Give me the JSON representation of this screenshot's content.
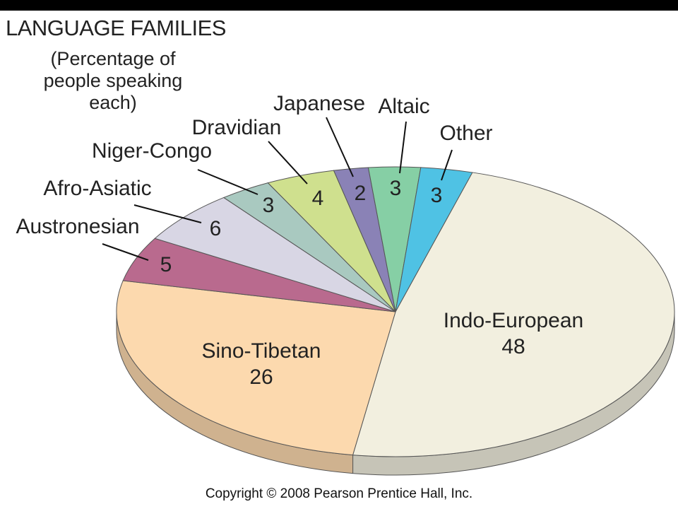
{
  "chart_data": {
    "type": "pie",
    "title": "LANGUAGE FAMILIES",
    "subtitle": "(Percentage of people speaking each)",
    "categories": [
      "Indo-European",
      "Sino-Tibetan",
      "Austronesian",
      "Afro-Asiatic",
      "Niger-Congo",
      "Dravidian",
      "Japanese",
      "Altaic",
      "Other"
    ],
    "values": [
      48,
      26,
      5,
      6,
      3,
      4,
      2,
      3,
      3
    ],
    "colors": [
      "#f2efdf",
      "#fcd9ae",
      "#b96a8e",
      "#d8d6e4",
      "#a9c9c0",
      "#cfe08e",
      "#8a82b6",
      "#86cfa5",
      "#4fc2e4"
    ],
    "copyright": "Copyright © 2008 Pearson Prentice Hall, Inc."
  }
}
